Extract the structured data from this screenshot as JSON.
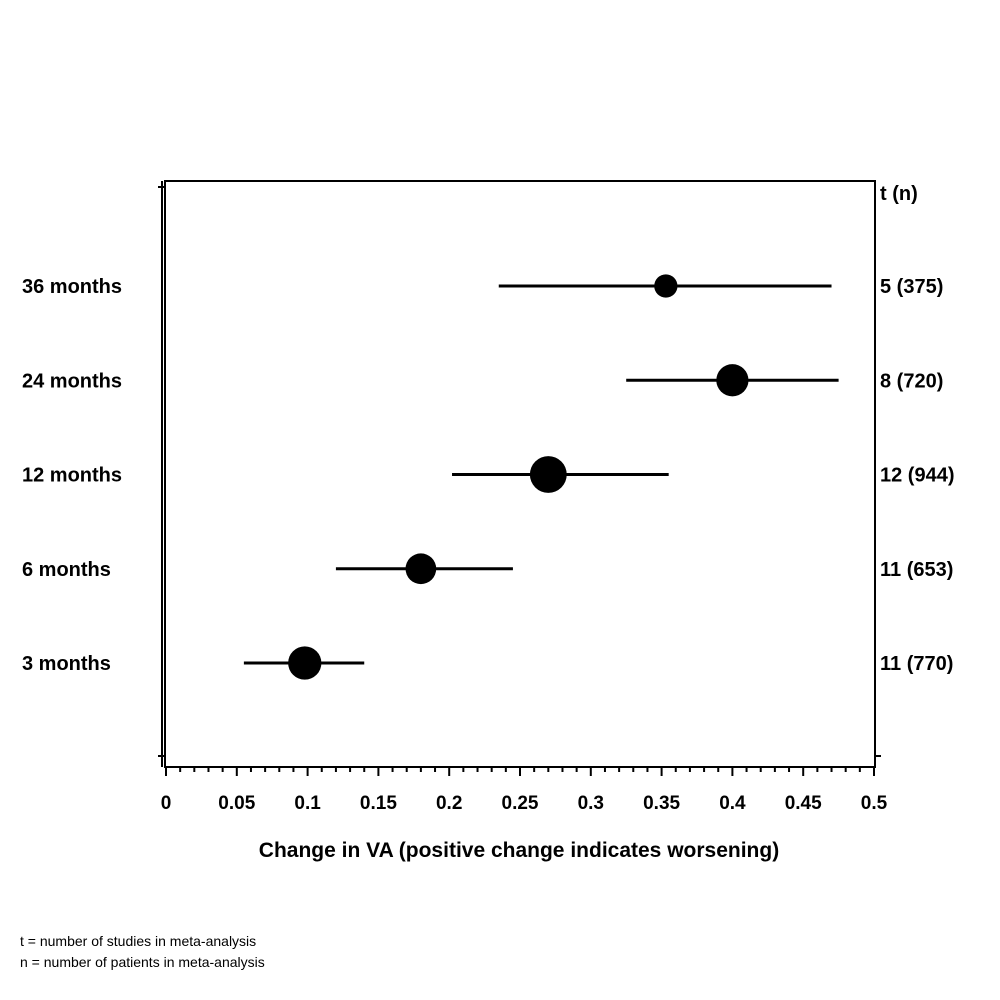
{
  "chart_data": {
    "type": "forest",
    "xlabel": "Change in VA (positive change indicates worsening)",
    "xlim": [
      0,
      0.5
    ],
    "x_ticks": [
      "0",
      "0.05",
      "0.1",
      "0.15",
      "0.2",
      "0.25",
      "0.3",
      "0.35",
      "0.4",
      "0.45",
      "0.5"
    ],
    "right_header": "t (n)",
    "grid": false,
    "rows": [
      {
        "label": "36 months",
        "estimate": 0.353,
        "lower": 0.235,
        "upper": 0.47,
        "right_label": "5 (375)",
        "t": 5,
        "n": 375
      },
      {
        "label": "24 months",
        "estimate": 0.4,
        "lower": 0.325,
        "upper": 0.475,
        "right_label": "8 (720)",
        "t": 8,
        "n": 720
      },
      {
        "label": "12 months",
        "estimate": 0.27,
        "lower": 0.202,
        "upper": 0.355,
        "right_label": "12 (944)",
        "t": 12,
        "n": 944
      },
      {
        "label": "6 months",
        "estimate": 0.18,
        "lower": 0.12,
        "upper": 0.245,
        "right_label": "11 (653)",
        "t": 11,
        "n": 653
      },
      {
        "label": "3 months",
        "estimate": 0.098,
        "lower": 0.055,
        "upper": 0.14,
        "right_label": "11 (770)",
        "t": 11,
        "n": 770
      }
    ]
  },
  "footnotes": [
    "t = number of studies in meta-analysis",
    "n = number of patients in meta-analysis"
  ]
}
